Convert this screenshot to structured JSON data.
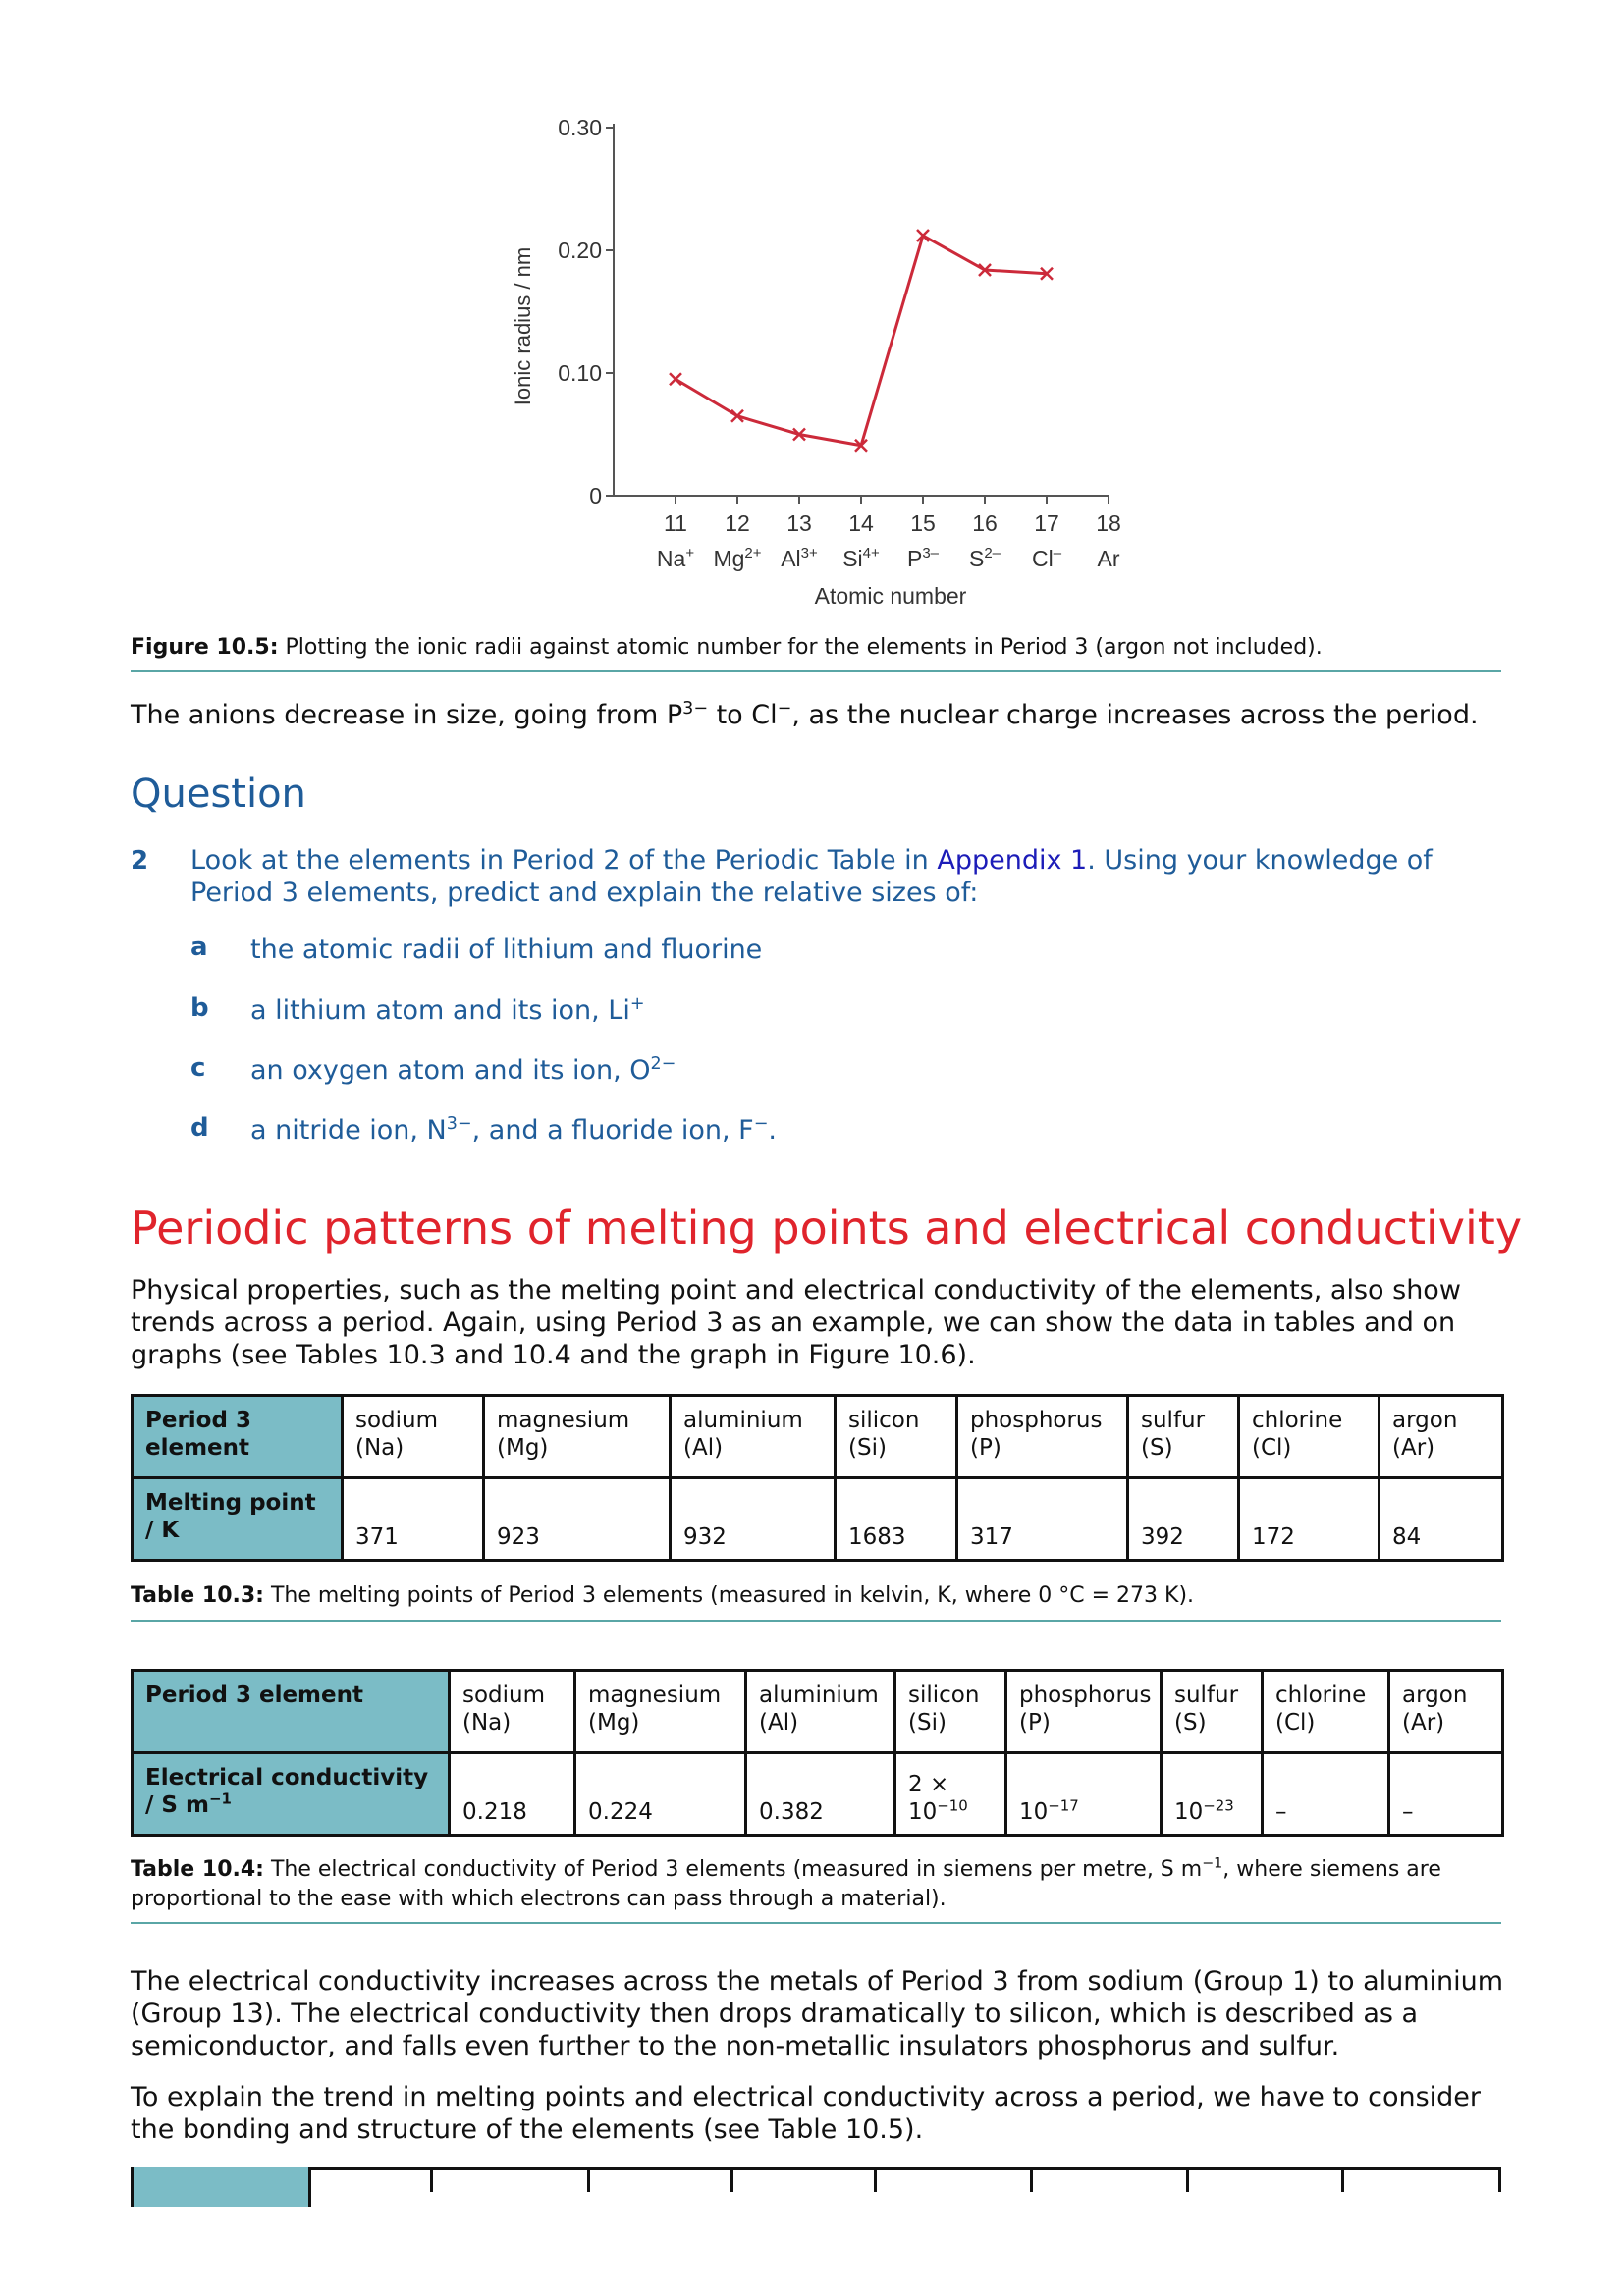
{
  "chart_data": {
    "type": "line",
    "ylabel": "Ionic radius / nm",
    "xlabel": "Atomic number",
    "yticks": [
      "0",
      "0.10",
      "0.20",
      "0.30"
    ],
    "ylim": [
      0,
      0.3
    ],
    "x_ticks": [
      11,
      12,
      13,
      14,
      15,
      16,
      17,
      18
    ],
    "x_ion_labels": [
      {
        "base": "Na",
        "sup": "+"
      },
      {
        "base": "Mg",
        "sup": "2+"
      },
      {
        "base": "Al",
        "sup": "3+"
      },
      {
        "base": "Si",
        "sup": "4+"
      },
      {
        "base": "P",
        "sup": "3–"
      },
      {
        "base": "S",
        "sup": "2–"
      },
      {
        "base": "Cl",
        "sup": "–"
      },
      {
        "base": "Ar",
        "sup": ""
      }
    ],
    "series": [
      {
        "x": [
          11,
          12,
          13,
          14,
          15,
          16,
          17
        ],
        "values": [
          0.095,
          0.065,
          0.05,
          0.041,
          0.212,
          0.184,
          0.181
        ],
        "color": "#cc2a3a"
      }
    ]
  },
  "figure_caption": {
    "label": "Figure 10.5:",
    "text": " Plotting the ionic radii against atomic number for the elements in Period 3 (argon not included)."
  },
  "anion_para": {
    "t1": "The anions decrease in size, going from P",
    "s1": "3−",
    "t2": " to Cl",
    "s2": "−",
    "t3": ", as the nuclear charge increases across the period."
  },
  "question": {
    "heading": "Question",
    "number": "2",
    "text_a": "Look at the elements in Period 2 of the Periodic Table in ",
    "link": "Appendix 1",
    "text_b": ". Using your knowledge of Period 3 elements, predict and explain the relative sizes of:",
    "items": [
      {
        "letter": "a",
        "t1": "the atomic radii of lithium and fluorine",
        "s1": "",
        "t2": "",
        "s2": "",
        "t3": ""
      },
      {
        "letter": "b",
        "t1": "a lithium atom and its ion, Li",
        "s1": "+",
        "t2": "",
        "s2": "",
        "t3": ""
      },
      {
        "letter": "c",
        "t1": "an oxygen atom and its ion, O",
        "s1": "2−",
        "t2": "",
        "s2": "",
        "t3": ""
      },
      {
        "letter": "d",
        "t1": "a nitride ion, N",
        "s1": "3−",
        "t2": ", and a fluoride ion, F",
        "s2": "−",
        "t3": "."
      }
    ]
  },
  "section": {
    "heading": "Periodic patterns of melting points and electrical conductivity",
    "intro": "Physical properties, such as the melting point and electrical conductivity of the elements, also show trends across a period. Again, using Period 3 as an example, we can show the data in tables and on graphs (see Tables 10.3 and 10.4 and the graph in Figure 10.6)."
  },
  "table1": {
    "header_label": "Period 3 element",
    "row_label": "Melting point / K",
    "elements": [
      "sodium (Na)",
      "magnesium (Mg)",
      "aluminium (Al)",
      "silicon (Si)",
      "phosphorus (P)",
      "sulfur (S)",
      "chlorine (Cl)",
      "argon (Ar)"
    ],
    "values": [
      "371",
      "923",
      "932",
      "1683",
      "317",
      "392",
      "172",
      "84"
    ],
    "caption_label": "Table 10.3:",
    "caption_text": " The melting points of Period 3 elements (measured in kelvin, K, where 0 °C = 273 K)."
  },
  "table2": {
    "header_label": "Period 3 element",
    "row_label": "Electrical conductivity / S m",
    "row_label_sup": "−1",
    "elements": [
      "sodium (Na)",
      "magnesium (Mg)",
      "aluminium (Al)",
      "silicon (Si)",
      "phosphorus (P)",
      "sulfur (S)",
      "chlorine (Cl)",
      "argon (Ar)"
    ],
    "values": [
      {
        "pre": "",
        "base": "0.218",
        "sup": ""
      },
      {
        "pre": "",
        "base": "0.224",
        "sup": ""
      },
      {
        "pre": "",
        "base": "0.382",
        "sup": ""
      },
      {
        "pre": "2 ×",
        "base": "10",
        "sup": "−10"
      },
      {
        "pre": "",
        "base": "10",
        "sup": "−17"
      },
      {
        "pre": "",
        "base": "10",
        "sup": "−23"
      },
      {
        "pre": "",
        "base": "–",
        "sup": ""
      },
      {
        "pre": "",
        "base": "–",
        "sup": ""
      }
    ],
    "caption_label": "Table 10.4:",
    "caption_t1": " The electrical conductivity of Period 3 elements (measured in siemens per metre, S m",
    "caption_sup": "−1",
    "caption_t2": ", where siemens are proportional to the ease with which electrons can pass through a material)."
  },
  "para_conductivity": "The electrical conductivity increases across the metals of Period 3 from sodium (Group 1) to aluminium (Group 13). The electrical conductivity then drops dramatically to silicon, which is described as a semiconductor, and falls even further to the non-metallic insulators phosphorus and sulfur.",
  "para_explain": "To explain the trend in melting points and electrical conductivity across a period, we have to consider the bonding and structure of the elements (see Table 10.5)."
}
